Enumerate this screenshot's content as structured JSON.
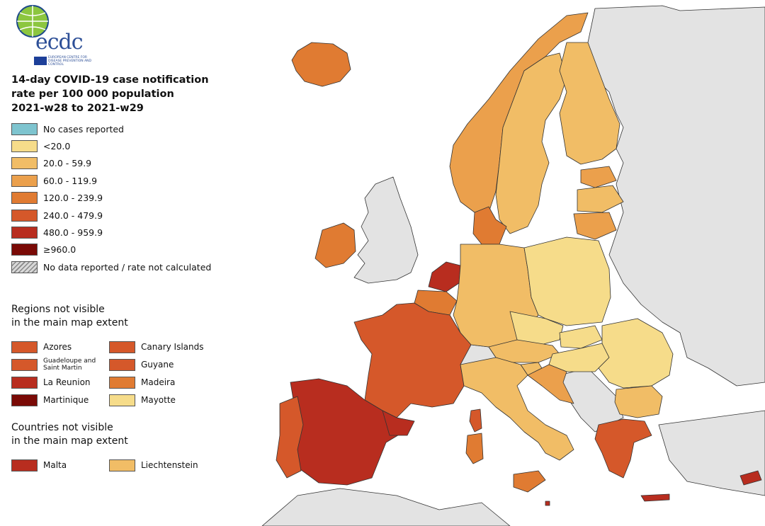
{
  "logo": {
    "word": "ecdc",
    "subtitle": "EUROPEAN CENTRE FOR DISEASE PREVENTION AND CONTROL"
  },
  "title": [
    "14-day COVID-19 case notification",
    "rate per 100 000 population",
    "2021-w28 to 2021-w29"
  ],
  "legend": [
    {
      "label": "No cases reported",
      "color": "#7ec4cf"
    },
    {
      "label": "<20.0",
      "color": "#f6dc8a"
    },
    {
      "label": "20.0 - 59.9",
      "color": "#f1bd66"
    },
    {
      "label": "60.0 - 119.9",
      "color": "#eba04c"
    },
    {
      "label": "120.0 - 239.9",
      "color": "#e07b32"
    },
    {
      "label": "240.0 - 479.9",
      "color": "#d5582a"
    },
    {
      "label": "480.0 - 959.9",
      "color": "#b82d1f"
    },
    {
      "label": "≥960.0",
      "color": "#7a0a06"
    },
    {
      "label": "No data reported / rate not calculated",
      "color": "hatched"
    }
  ],
  "regions_title": [
    "Regions not visible",
    "in the main map extent"
  ],
  "regions": [
    {
      "label": "Azores",
      "color": "#d5582a"
    },
    {
      "label": "Canary Islands",
      "color": "#d5582a"
    },
    {
      "label": "Guadeloupe and Saint Martin",
      "color": "#d5582a"
    },
    {
      "label": "Guyane",
      "color": "#d5582a"
    },
    {
      "label": "La Reunion",
      "color": "#b82d1f"
    },
    {
      "label": "Madeira",
      "color": "#e07b32"
    },
    {
      "label": "Martinique",
      "color": "#7a0a06"
    },
    {
      "label": "Mayotte",
      "color": "#f6dc8a"
    }
  ],
  "countries_title": [
    "Countries not visible",
    "in the main map extent"
  ],
  "countries": [
    {
      "label": "Malta",
      "color": "#b82d1f"
    },
    {
      "label": "Liechtenstein",
      "color": "#f1bd66"
    }
  ],
  "map_colors": {
    "sea": "#ffffff",
    "non_eu": "#e3e3e3",
    "border": "#333333",
    "iceland": "#e07b32",
    "norway": "#eba04c",
    "sweden": "#f1bd66",
    "finland": "#f1bd66",
    "baltics": "#eba04c",
    "ireland": "#e07b32",
    "denmark": "#e07b32",
    "netherlands": "#b82d1f",
    "belgium": "#e07b32",
    "france": "#d5582a",
    "spain": "#b82d1f",
    "portugal": "#d5582a",
    "germany": "#f1bd66",
    "poland": "#f6dc8a",
    "czechia": "#f6dc8a",
    "austria": "#f1bd66",
    "italy": "#f1bd66",
    "hungary": "#f6dc8a",
    "romania": "#f6dc8a",
    "bulgaria": "#f1bd66",
    "greece": "#d5582a",
    "croatia": "#eba04c",
    "slovenia": "#f1bd66",
    "cyprus": "#b82d1f",
    "malta": "#b82d1f",
    "catalonia": "#b82d1f",
    "corsica": "#d5582a",
    "sardinia": "#e07b32",
    "sicily": "#e07b32",
    "crete": "#b82d1f",
    "liechtenstein": "#f1bd66"
  }
}
